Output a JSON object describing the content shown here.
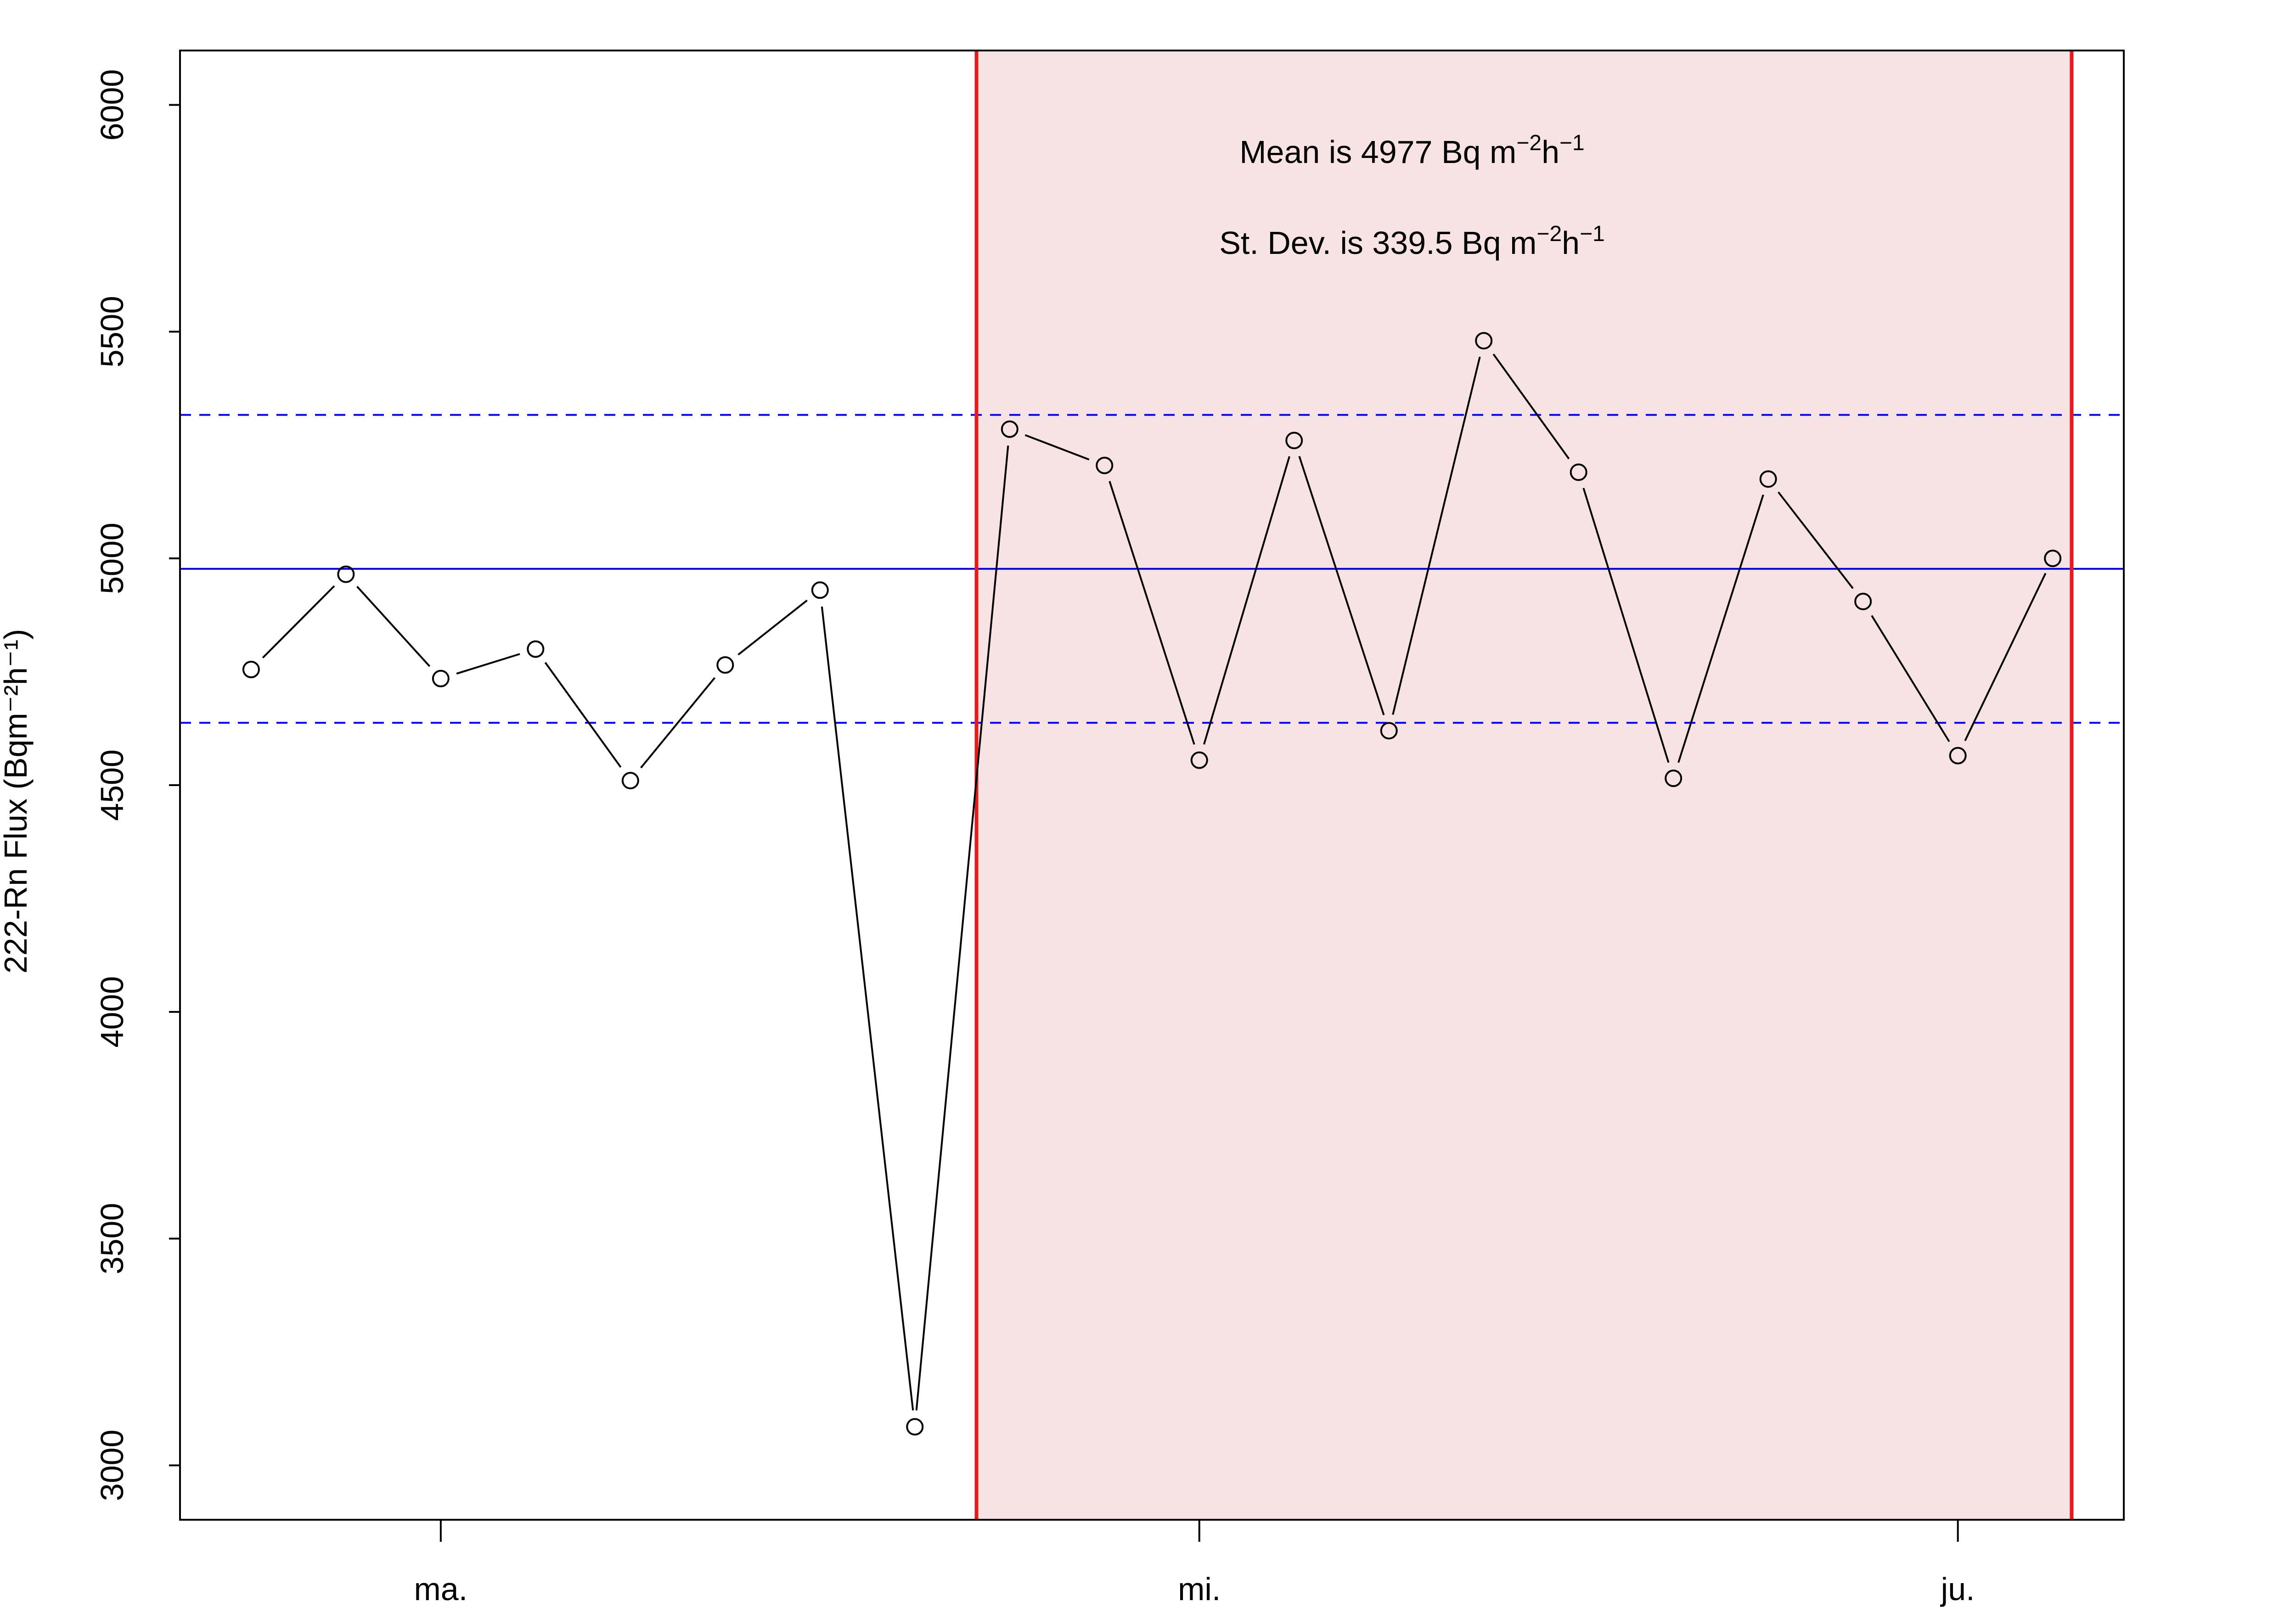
{
  "chart_data": {
    "type": "line",
    "title": "",
    "xlabel": "",
    "ylabel": "222-Rn Flux (Bqm⁻²h⁻¹)",
    "ylim": [
      2880,
      6120
    ],
    "xlim": [
      -2.75,
      17.75
    ],
    "y_ticks": [
      3000,
      3500,
      4000,
      4500,
      5000,
      5500,
      6000
    ],
    "x_ticks": [
      {
        "x": 0,
        "label": "ma."
      },
      {
        "x": 8,
        "label": "mi."
      },
      {
        "x": 16,
        "label": "ju."
      }
    ],
    "series": [
      {
        "x": [
          -2,
          -1,
          0,
          1,
          2,
          3,
          4,
          5,
          6,
          7,
          8,
          9,
          10,
          11,
          12,
          13,
          14,
          15,
          16,
          17
        ],
        "values": [
          4755,
          4965,
          4735,
          4800,
          4510,
          4765,
          4930,
          3085,
          5285,
          5205,
          4555,
          5260,
          4620,
          5480,
          5190,
          4515,
          5175,
          4905,
          4565,
          5000
        ],
        "marker": "open-circle",
        "color": "#000000"
      }
    ],
    "reference_lines": {
      "mean": {
        "y": 4977,
        "color": "#0000ff",
        "style": "solid"
      },
      "upper": {
        "y": 5316.5,
        "color": "#0000ff",
        "style": "dashed"
      },
      "lower": {
        "y": 4637.5,
        "color": "#0000ff",
        "style": "dashed"
      }
    },
    "highlight_region": {
      "x_start": 5.65,
      "x_end": 17.2,
      "fill": "#f8e3e4",
      "border": "#e8191d"
    },
    "annotations": {
      "mean_text": "Mean is 4977 Bq m",
      "sd_text": "St. Dev. is 339.5 Bq m",
      "unit_h": "h",
      "exp_m": "−2",
      "exp_h": "−1"
    },
    "grid": false,
    "legend": "none"
  }
}
